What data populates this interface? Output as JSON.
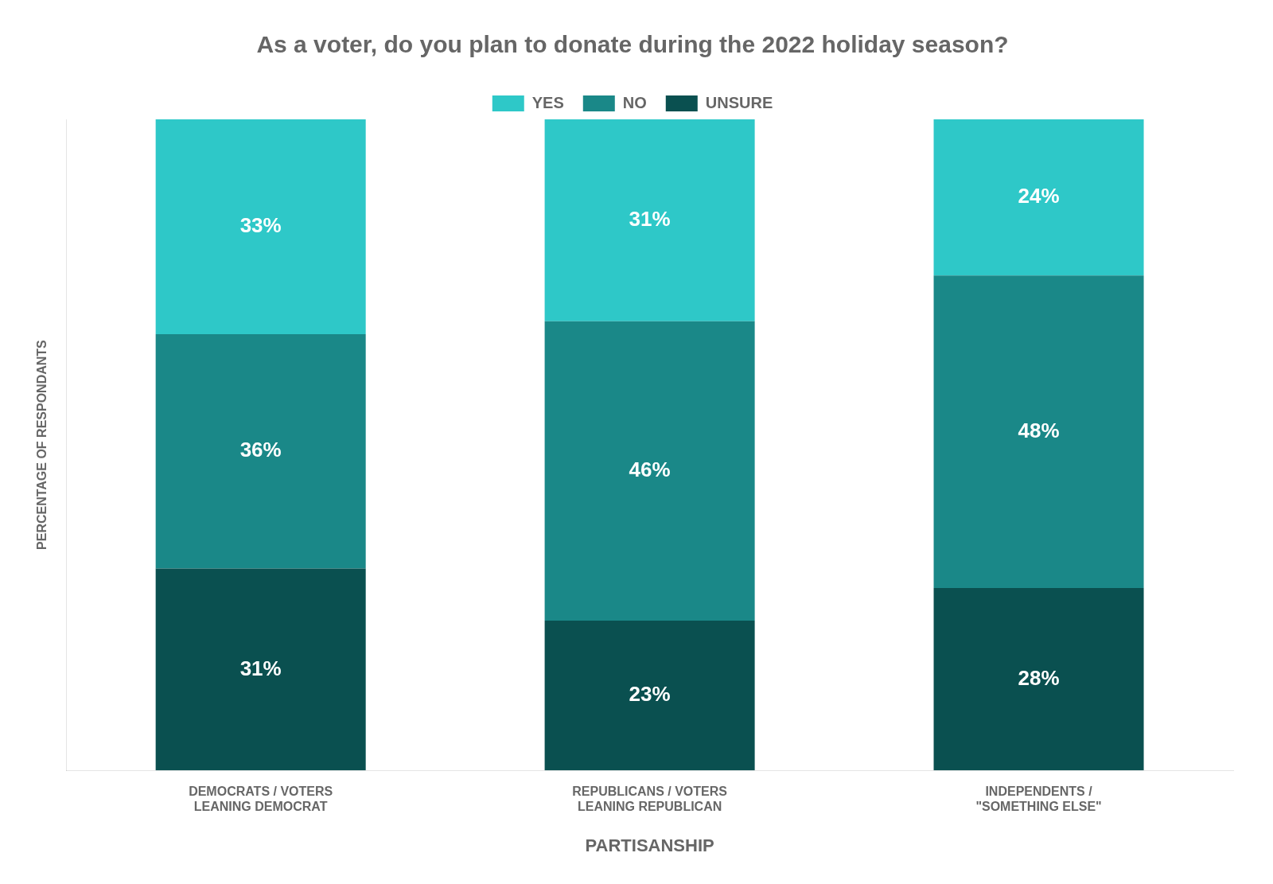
{
  "chart_data": {
    "type": "bar",
    "stacked": true,
    "title": "As a voter, do you plan to donate during the 2022 holiday season?",
    "categories": [
      "DEMOCRATS / VOTERS\nLEANING DEMOCRAT",
      "REPUBLICANS / VOTERS\nLEANING REPUBLICAN",
      "INDEPENDENTS /\n\"SOMETHING ELSE\""
    ],
    "xlabel": "PARTISANSHIP",
    "ylabel": "PERCENTAGE OF RESPONDANTS",
    "series": [
      {
        "name": "YES",
        "color": "#2ec8c8",
        "values": [
          33,
          31,
          24
        ],
        "value_labels": [
          "33%",
          "31%",
          "24%"
        ]
      },
      {
        "name": "NO",
        "color": "#1a8888",
        "values": [
          36,
          46,
          48
        ],
        "value_labels": [
          "36%",
          "46%",
          "48%"
        ]
      },
      {
        "name": "UNSURE",
        "color": "#0a5050",
        "values": [
          31,
          23,
          28
        ],
        "value_labels": [
          "31%",
          "23%",
          "28%"
        ]
      }
    ],
    "ylim": [
      0,
      100
    ],
    "grid": false,
    "legend": "top",
    "data_labels": true,
    "tick_labels": "x"
  }
}
